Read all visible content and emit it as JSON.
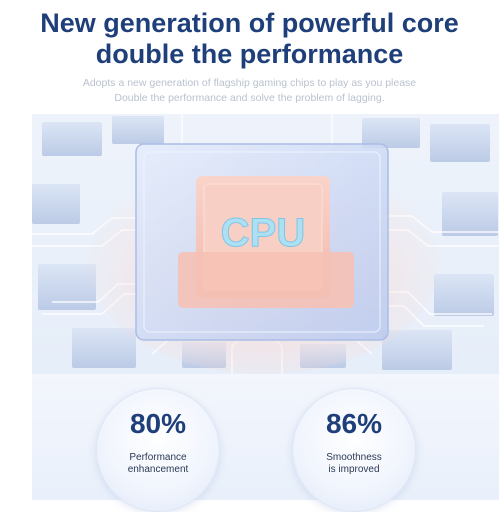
{
  "header": {
    "title_line1": "New generation of powerful core",
    "title_line2": "double the performance",
    "subtitle_line1": "Adopts a new generation of flagship gaming chips to play as you please",
    "subtitle_line2": "Double the performance and solve the problem of lagging."
  },
  "hero": {
    "chip_label": "CPU"
  },
  "stats": [
    {
      "value": "80%",
      "label_line1": "Performance",
      "label_line2": "enhancement"
    },
    {
      "value": "86%",
      "label_line1": "Smoothness",
      "label_line2": "is improved"
    }
  ],
  "colors": {
    "title": "#1f3f7a",
    "subtitle": "#b9c2cf",
    "chip_pink": "#f6c6bb",
    "glass": "#c9d8f3",
    "chip_text": "#aee0f4"
  }
}
